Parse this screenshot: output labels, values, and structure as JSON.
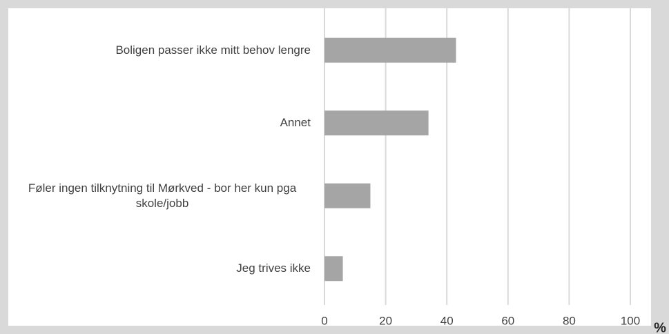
{
  "chart_data": {
    "type": "bar",
    "orientation": "horizontal",
    "categories": [
      "Boligen passer ikke mitt behov lengre",
      "Annet",
      "Føler ingen tilknytning til Mørkved - bor her kun pga skole/jobb",
      "Jeg trives ikke"
    ],
    "values": [
      43,
      34,
      15,
      6
    ],
    "color": "#a5a5a5",
    "xlim": [
      0,
      100
    ],
    "xticks": [
      0,
      20,
      40,
      60,
      80,
      100
    ],
    "xlabel": "%",
    "grid": true
  }
}
